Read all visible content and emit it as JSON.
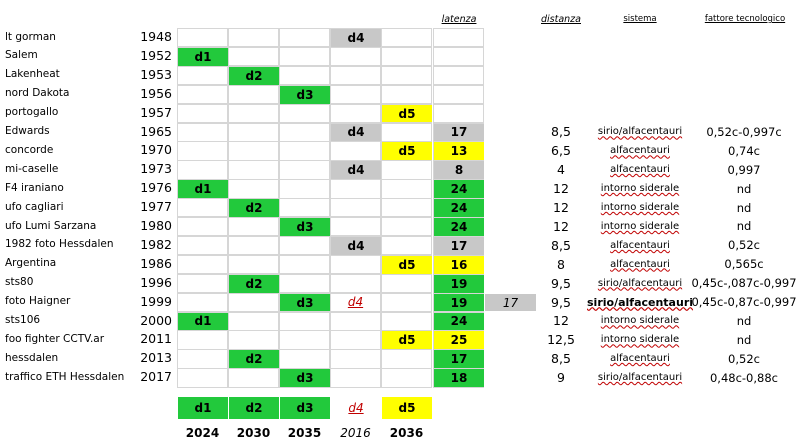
{
  "headers": {
    "latenza": "latenza",
    "distanza": "distanza",
    "sistema": "sistema",
    "fattore": "fattore tecnologico"
  },
  "rows": [
    {
      "name": "lt gorman",
      "year": "1948",
      "col": 3,
      "mark": "d4",
      "color": "gray",
      "lat": "",
      "latColor": "",
      "dist": "",
      "sys": "",
      "fatt": ""
    },
    {
      "name": "Salem",
      "year": "1952",
      "col": 0,
      "mark": "d1",
      "color": "green",
      "lat": "",
      "latColor": "",
      "dist": "",
      "sys": "",
      "fatt": ""
    },
    {
      "name": "Lakenheat",
      "year": "1953",
      "col": 1,
      "mark": "d2",
      "color": "green",
      "lat": "",
      "latColor": "",
      "dist": "",
      "sys": "",
      "fatt": ""
    },
    {
      "name": "nord Dakota",
      "year": "1956",
      "col": 2,
      "mark": "d3",
      "color": "green",
      "lat": "",
      "latColor": "",
      "dist": "",
      "sys": "",
      "fatt": ""
    },
    {
      "name": "portogallo",
      "year": "1957",
      "col": 4,
      "mark": "d5",
      "color": "yellow",
      "lat": "",
      "latColor": "",
      "dist": "",
      "sys": "",
      "fatt": ""
    },
    {
      "name": "Edwards",
      "year": "1965",
      "col": 3,
      "mark": "d4",
      "color": "gray",
      "lat": "17",
      "latColor": "gray",
      "dist": "8,5",
      "sys": "sirio/alfacentauri",
      "fatt": "0,52c-0,997c"
    },
    {
      "name": "concorde",
      "year": "1970",
      "col": 4,
      "mark": "d5",
      "color": "yellow",
      "lat": "13",
      "latColor": "yellow",
      "dist": "6,5",
      "sys": "alfacentauri",
      "fatt": "0,74c"
    },
    {
      "name": "mi-caselle",
      "year": "1973",
      "col": 3,
      "mark": "d4",
      "color": "gray",
      "lat": "8",
      "latColor": "gray",
      "dist": "4",
      "sys": "alfacentauri",
      "fatt": "0,997"
    },
    {
      "name": "F4 iraniano",
      "year": "1976",
      "col": 0,
      "mark": "d1",
      "color": "green",
      "lat": "24",
      "latColor": "green",
      "dist": "12",
      "sys": "intorno siderale",
      "fatt": "nd"
    },
    {
      "name": "ufo cagliari",
      "year": "1977",
      "col": 1,
      "mark": "d2",
      "color": "green",
      "lat": "24",
      "latColor": "green",
      "dist": "12",
      "sys": "intorno siderale",
      "fatt": "nd"
    },
    {
      "name": "ufo Lumi Sarzana",
      "year": "1980",
      "col": 2,
      "mark": "d3",
      "color": "green",
      "lat": "24",
      "latColor": "green",
      "dist": "12",
      "sys": "intorno siderale",
      "fatt": "nd"
    },
    {
      "name": "1982 foto Hessdalen",
      "year": "1982",
      "col": 3,
      "mark": "d4",
      "color": "gray",
      "lat": "17",
      "latColor": "gray",
      "dist": "8,5",
      "sys": "alfacentauri",
      "fatt": "0,52c"
    },
    {
      "name": "Argentina",
      "year": "1986",
      "col": 4,
      "mark": "d5",
      "color": "yellow",
      "lat": "16",
      "latColor": "yellow",
      "dist": "8",
      "sys": "alfacentauri",
      "fatt": "0,565c"
    },
    {
      "name": "sts80",
      "year": "1996",
      "col": 1,
      "mark": "d2",
      "color": "green",
      "lat": "19",
      "latColor": "green",
      "dist": "9,5",
      "sys": "sirio/alfacentauri",
      "fatt": "0,45c-,087c-0,997"
    },
    {
      "name": "foto Haigner",
      "year": "1999",
      "col": 2,
      "mark": "d3",
      "color": "green",
      "lat": "19",
      "latColor": "green",
      "dist": "9,5",
      "sys": "sirio/alfacentauri",
      "fatt": "0,45c-0,87c-0,997",
      "red": "d4",
      "extra": "17",
      "sysBold": true
    },
    {
      "name": "sts106",
      "year": "2000",
      "col": 0,
      "mark": "d1",
      "color": "green",
      "lat": "24",
      "latColor": "green",
      "dist": "12",
      "sys": "intorno siderale",
      "fatt": "nd"
    },
    {
      "name": "foo fighter CCTV.ar",
      "year": "2011",
      "col": 4,
      "mark": "d5",
      "color": "yellow",
      "lat": "25",
      "latColor": "yellow",
      "dist": "12,5",
      "sys": "intorno siderale",
      "fatt": "nd"
    },
    {
      "name": "hessdalen",
      "year": "2013",
      "col": 1,
      "mark": "d2",
      "color": "green",
      "lat": "17",
      "latColor": "green",
      "dist": "8,5",
      "sys": "alfacentauri",
      "fatt": "0,52c"
    },
    {
      "name": "traffico ETH Hessdalen",
      "year": "2017",
      "col": 2,
      "mark": "d3",
      "color": "green",
      "lat": "18",
      "latColor": "green",
      "dist": "9",
      "sys": "sirio/alfacentauri",
      "fatt": "0,48c-0,88c"
    }
  ],
  "legend": [
    {
      "label": "d1",
      "color": "green",
      "year": "2024"
    },
    {
      "label": "d2",
      "color": "green",
      "year": "2030"
    },
    {
      "label": "d3",
      "color": "green",
      "year": "2035"
    },
    {
      "label": "d4",
      "color": "red",
      "year": "2016"
    },
    {
      "label": "d5",
      "color": "yellow",
      "year": "2036"
    }
  ],
  "colors": {
    "green": "#22c93c",
    "yellow": "#ffff00",
    "gray": "#c8c8c8",
    "red": "#c00000"
  }
}
